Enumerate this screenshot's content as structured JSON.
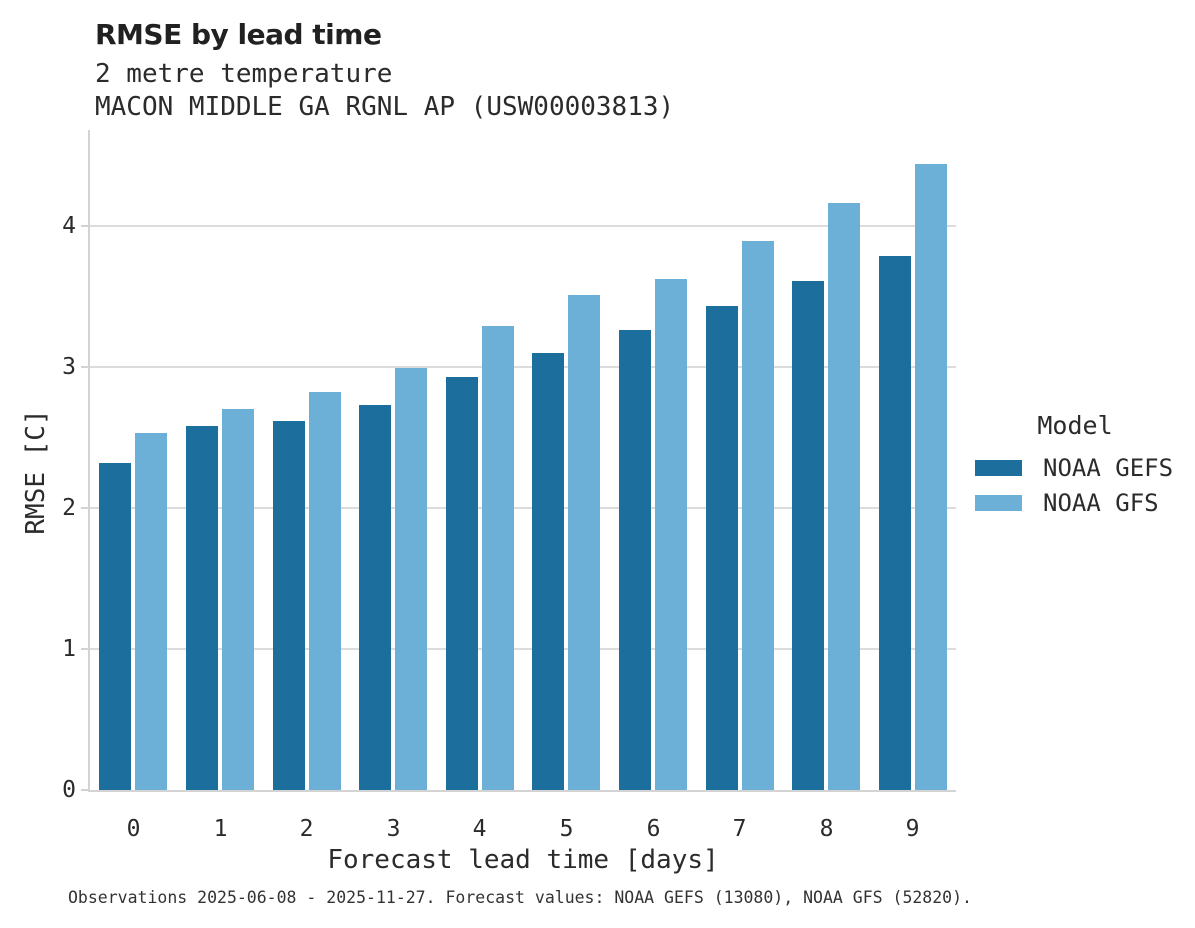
{
  "chart_data": {
    "type": "bar",
    "title": "RMSE by lead time",
    "subtitle": "2 metre temperature",
    "subtitle2": "MACON MIDDLE GA RGNL AP (USW00003813)",
    "xlabel": "Forecast lead time [days]",
    "ylabel": "RMSE [C]",
    "categories": [
      0,
      1,
      2,
      3,
      4,
      5,
      6,
      7,
      8,
      9
    ],
    "series": [
      {
        "name": "NOAA GEFS",
        "color": "#1c6e9c",
        "values": [
          2.32,
          2.58,
          2.62,
          2.73,
          2.93,
          3.1,
          3.26,
          3.43,
          3.61,
          3.79
        ]
      },
      {
        "name": "NOAA GFS",
        "color": "#6cb0d8",
        "values": [
          2.53,
          2.7,
          2.82,
          2.99,
          3.29,
          3.51,
          3.62,
          3.89,
          4.16,
          4.44
        ]
      }
    ],
    "ylim": [
      0,
      4.68
    ],
    "yticks": [
      0,
      1,
      2,
      3,
      4
    ],
    "grid": true,
    "legend_title": "Model",
    "legend_position": "right",
    "caption": "Observations 2025-06-08 - 2025-11-27. Forecast values: NOAA GEFS (13080), NOAA GFS (52820)."
  },
  "colors": {
    "background": "#ffffff",
    "gridline": "#dcdcdc",
    "spine": "#d3d3d3",
    "text": "#2b2b2b",
    "series_dark": "#1c6e9c",
    "series_light": "#6cb0d8"
  }
}
